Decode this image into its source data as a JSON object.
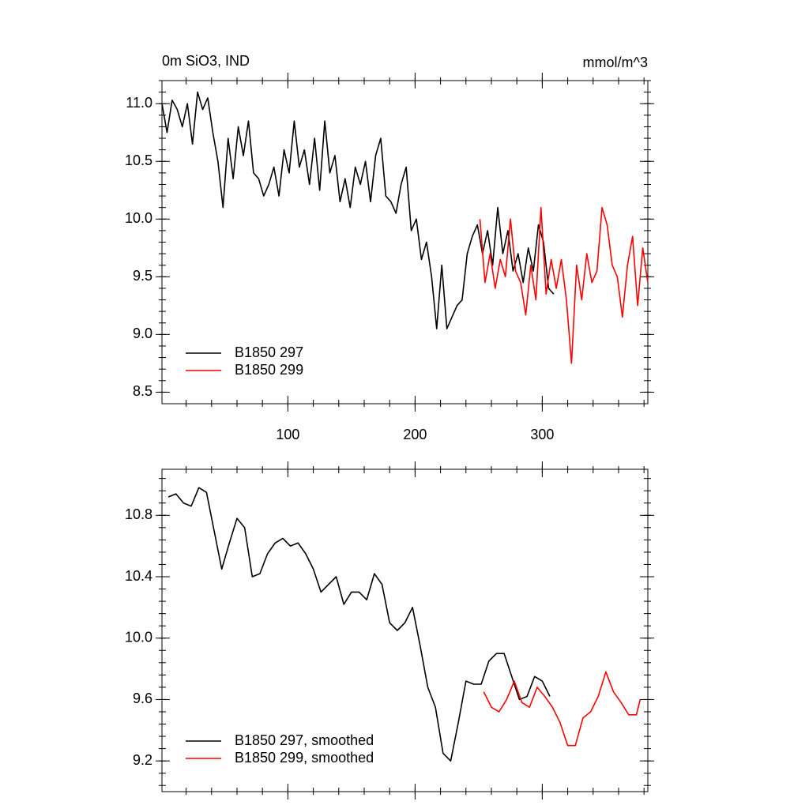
{
  "chart_data": [
    {
      "type": "line",
      "title": "0m SiO3, IND",
      "units": "mmol/m^3",
      "xlim": [
        1,
        383
      ],
      "xticks": [
        100,
        200,
        300
      ],
      "ylim": [
        8.4,
        11.2
      ],
      "yticks": [
        {
          "value": 11.0,
          "label": "11.0"
        },
        10.5,
        {
          "value": 10.0,
          "label": "10.0"
        },
        9.5,
        {
          "value": 9.0,
          "label": "9.0"
        },
        8.5
      ],
      "legend": "lower left",
      "series": [
        {
          "name": "B1850 297",
          "color": "#000000",
          "x": [
            1,
            5,
            9,
            13,
            17,
            21,
            25,
            29,
            33,
            37,
            41,
            45,
            49,
            53,
            57,
            61,
            65,
            69,
            73,
            77,
            81,
            85,
            89,
            93,
            97,
            101,
            105,
            109,
            113,
            117,
            121,
            125,
            129,
            133,
            137,
            141,
            145,
            149,
            153,
            157,
            161,
            165,
            169,
            173,
            177,
            181,
            185,
            189,
            193,
            197,
            201,
            205,
            209,
            213,
            217,
            221,
            225,
            229,
            233,
            237,
            241,
            245,
            249,
            253,
            257,
            261,
            265,
            269,
            273,
            277,
            281,
            285,
            289,
            293,
            297,
            301,
            305,
            309
          ],
          "values": [
            11.0,
            10.75,
            11.03,
            10.95,
            10.8,
            11.0,
            10.65,
            11.1,
            10.95,
            11.05,
            10.75,
            10.5,
            10.1,
            10.7,
            10.35,
            10.8,
            10.55,
            10.85,
            10.4,
            10.35,
            10.2,
            10.3,
            10.45,
            10.2,
            10.6,
            10.4,
            10.85,
            10.45,
            10.6,
            10.3,
            10.7,
            10.25,
            10.85,
            10.4,
            10.55,
            10.15,
            10.35,
            10.1,
            10.45,
            10.3,
            10.5,
            10.15,
            10.55,
            10.7,
            10.2,
            10.15,
            10.05,
            10.3,
            10.45,
            9.9,
            10.0,
            9.65,
            9.8,
            9.5,
            9.05,
            9.6,
            9.05,
            9.15,
            9.25,
            9.3,
            9.7,
            9.85,
            9.95,
            9.7,
            9.9,
            9.6,
            10.1,
            9.7,
            9.9,
            9.55,
            9.7,
            9.45,
            9.75,
            9.55,
            9.95,
            9.8,
            9.4,
            9.35
          ]
        },
        {
          "name": "B1850 299",
          "color": "#ff0000",
          "x": [
            251,
            255,
            259,
            263,
            267,
            271,
            275,
            279,
            283,
            287,
            291,
            295,
            299,
            303,
            307,
            311,
            315,
            319,
            323,
            327,
            331,
            335,
            339,
            343,
            347,
            351,
            355,
            359,
            363,
            367,
            371,
            375,
            379,
            383
          ],
          "values": [
            10.0,
            9.45,
            9.7,
            9.4,
            9.65,
            9.5,
            10.0,
            9.55,
            9.45,
            9.17,
            9.6,
            9.3,
            10.1,
            9.35,
            9.65,
            9.4,
            9.65,
            9.3,
            8.75,
            9.6,
            9.3,
            9.7,
            9.45,
            9.55,
            10.1,
            9.95,
            9.6,
            9.5,
            9.15,
            9.6,
            9.85,
            9.25,
            9.75,
            9.45
          ]
        }
      ]
    },
    {
      "type": "line",
      "xlim": [
        1,
        383
      ],
      "ylim": [
        9.0,
        11.1
      ],
      "yticks": [
        10.8,
        10.4,
        {
          "value": 10.0,
          "label": "10.0"
        },
        9.6,
        9.2
      ],
      "legend": "lower left",
      "series": [
        {
          "name": "B1850 297, smoothed",
          "color": "#000000",
          "x": [
            6,
            12,
            18,
            24,
            30,
            36,
            42,
            48,
            54,
            60,
            66,
            72,
            78,
            84,
            90,
            96,
            102,
            108,
            114,
            120,
            126,
            132,
            138,
            144,
            150,
            156,
            162,
            168,
            174,
            180,
            186,
            192,
            198,
            204,
            210,
            216,
            222,
            228,
            234,
            240,
            246,
            252,
            258,
            264,
            270,
            276,
            282,
            288,
            294,
            300,
            306
          ],
          "values": [
            10.92,
            10.94,
            10.88,
            10.86,
            10.98,
            10.95,
            10.7,
            10.45,
            10.62,
            10.78,
            10.72,
            10.4,
            10.42,
            10.55,
            10.62,
            10.65,
            10.6,
            10.62,
            10.55,
            10.45,
            10.3,
            10.35,
            10.4,
            10.22,
            10.3,
            10.3,
            10.25,
            10.42,
            10.35,
            10.1,
            10.05,
            10.1,
            10.2,
            9.95,
            9.68,
            9.55,
            9.25,
            9.2,
            9.45,
            9.72,
            9.7,
            9.7,
            9.85,
            9.9,
            9.9,
            9.75,
            9.6,
            9.62,
            9.75,
            9.72,
            9.62
          ]
        },
        {
          "name": "B1850 299, smoothed",
          "color": "#ff0000",
          "x": [
            254,
            260,
            266,
            272,
            278,
            284,
            290,
            296,
            302,
            308,
            314,
            320,
            326,
            332,
            338,
            344,
            350,
            356,
            362,
            368,
            374,
            377
          ],
          "values": [
            9.65,
            9.55,
            9.52,
            9.6,
            9.72,
            9.58,
            9.55,
            9.68,
            9.62,
            9.55,
            9.45,
            9.3,
            9.3,
            9.48,
            9.52,
            9.62,
            9.78,
            9.65,
            9.58,
            9.5,
            9.5,
            9.6
          ]
        }
      ]
    }
  ]
}
